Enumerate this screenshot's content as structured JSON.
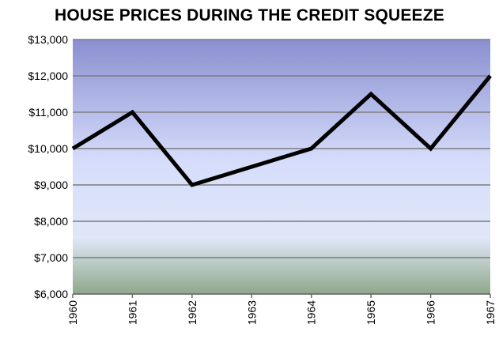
{
  "chart_data": {
    "type": "line",
    "title": "HOUSE PRICES DURING THE CREDIT SQUEEZE",
    "xlabel": "",
    "ylabel": "",
    "categories": [
      "1960",
      "1961",
      "1962",
      "1963",
      "1964",
      "1965",
      "1966",
      "1967"
    ],
    "series": [
      {
        "values": [
          10000,
          11000,
          9000,
          9500,
          10000,
          11500,
          10000,
          12000
        ],
        "color": "#000000"
      }
    ],
    "ylim": [
      6000,
      13000
    ],
    "yticks": [
      6000,
      7000,
      8000,
      9000,
      10000,
      11000,
      12000,
      13000
    ],
    "ytick_labels": [
      "$6,000",
      "$7,000",
      "$8,000",
      "$9,000",
      "$10,000",
      "$11,000",
      "$12,000",
      "$13,000"
    ],
    "grid": true,
    "legend": "none",
    "background_gradient": [
      "#8a8fd0",
      "#d6ddfb",
      "#dfe7f8",
      "#8fa88a"
    ]
  }
}
